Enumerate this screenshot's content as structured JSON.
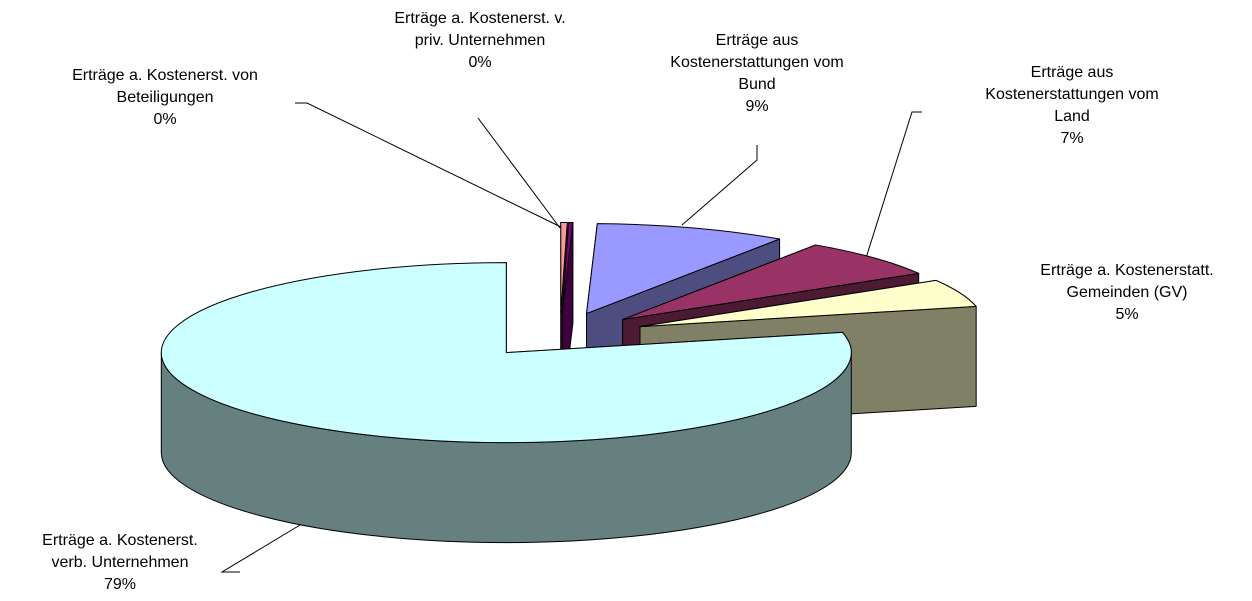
{
  "chart_data": {
    "type": "pie3d",
    "categories": [
      "Erträge a. Kostenerst. von\nBeteiligungen",
      "Erträge a. Kostenerst. v.\npriv. Unternehmen",
      "Erträge aus\nKostenerstattungen vom\nBund",
      "Erträge aus\nKostenerstattungen vom\nLand",
      "Erträge a. Kostenerstatt.\nGemeinden (GV)",
      "Erträge a. Kostenerst.\nverb. Unternehmen"
    ],
    "values": [
      0.3,
      0.2,
      9,
      7,
      5,
      79
    ],
    "value_labels": [
      "0%",
      "0%",
      "9%",
      "7%",
      "5%",
      "79%"
    ],
    "colors": [
      "#ff9999",
      "#800080",
      "#9999ff",
      "#993366",
      "#ffffcc",
      "#ccffff"
    ]
  }
}
